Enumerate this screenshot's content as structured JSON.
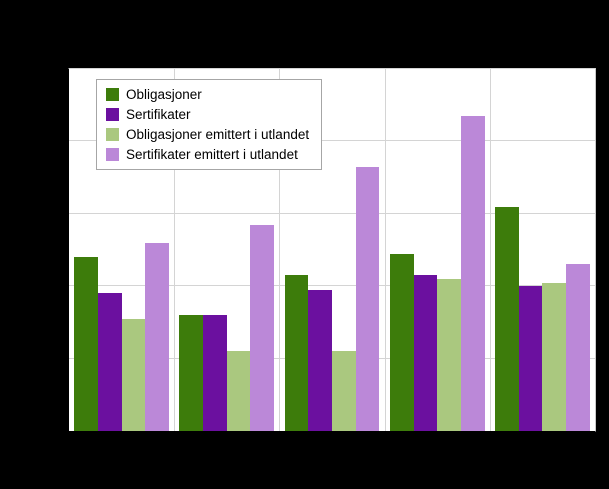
{
  "chart_data": {
    "type": "bar",
    "title": "",
    "xlabel": "",
    "ylabel": "",
    "categories": [
      "",
      "",
      "",
      "",
      ""
    ],
    "series": [
      {
        "name": "Obligasjoner",
        "color": "#3d7c0b",
        "values": [
          48,
          32,
          43,
          49,
          62
        ]
      },
      {
        "name": "Sertifikater",
        "color": "#6b109f",
        "values": [
          38,
          32,
          39,
          43,
          40
        ]
      },
      {
        "name": "Obligasjoner emittert i utlandet",
        "color": "#aac87f",
        "values": [
          31,
          22,
          22,
          42,
          41
        ]
      },
      {
        "name": "Sertifikater emittert i utlandet",
        "color": "#bb88d8",
        "values": [
          52,
          57,
          73,
          87,
          46
        ]
      }
    ],
    "ylim": [
      0,
      100
    ],
    "grid": true,
    "gridline_step": 20,
    "legend_position": "top-left"
  },
  "colors": {
    "page_background": "#000000",
    "plot_background": "#ffffff",
    "gridline": "#d4d4d4",
    "axis": "#000000",
    "legend_border": "#a6a6a6"
  }
}
